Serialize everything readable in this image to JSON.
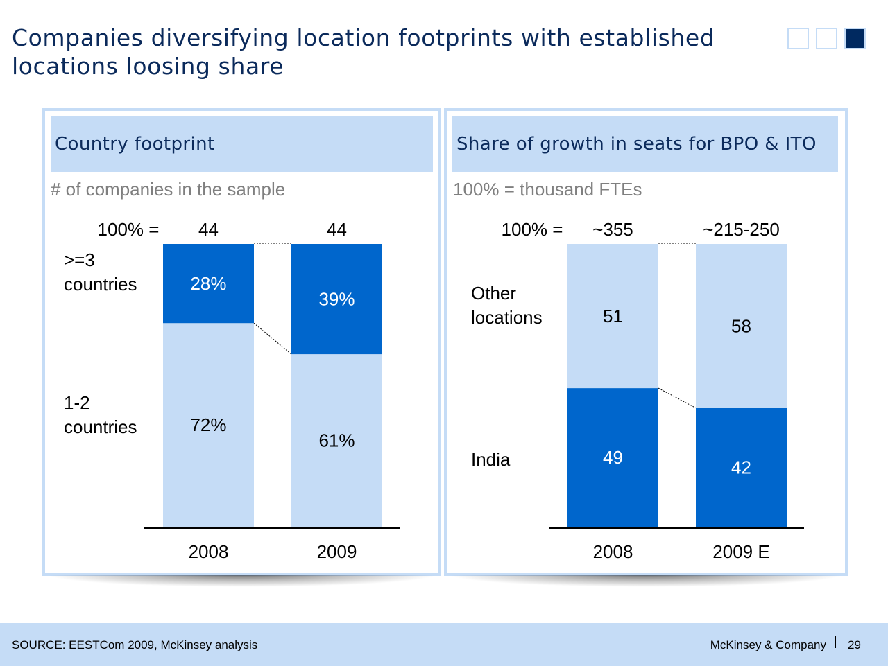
{
  "slide": {
    "title_line1": "Companies diversifying location footprints with established",
    "title_line2": "locations loosing share"
  },
  "footer": {
    "source": "SOURCE: EESTCom 2009, McKinsey analysis",
    "brand": "McKinsey & Company",
    "page": "29"
  },
  "colors": {
    "dark_blue": "#0066cc",
    "light_blue": "#c5dcf6",
    "title_navy": "#0b2a5b",
    "subtitle_gray": "#7f7f7f"
  },
  "chart_data": [
    {
      "type": "bar",
      "stacked": true,
      "normalized": true,
      "title": "Country footprint",
      "subtitle": "# of companies in the sample",
      "total_prefix": "100% =",
      "categories": [
        "2008",
        "2009"
      ],
      "totals": [
        "44",
        "44"
      ],
      "series": [
        {
          "name": "1-2\ncountries",
          "values": [
            72,
            61
          ],
          "labels": [
            "72%",
            "61%"
          ],
          "color": "#c5dcf6"
        },
        {
          "name": ">=3\ncountries",
          "values": [
            28,
            39
          ],
          "labels": [
            "28%",
            "39%"
          ],
          "color": "#0066cc"
        }
      ],
      "ylim": [
        0,
        100
      ]
    },
    {
      "type": "bar",
      "stacked": true,
      "normalized": true,
      "title": "Share of growth in seats for BPO & ITO",
      "subtitle": "100% = thousand FTEs",
      "total_prefix": "100% =",
      "categories": [
        "2008",
        "2009 E"
      ],
      "totals": [
        "~355",
        "~215-250"
      ],
      "series": [
        {
          "name": "India",
          "values": [
            49,
            42
          ],
          "labels": [
            "49",
            "42"
          ],
          "color": "#0066cc"
        },
        {
          "name": "Other\nlocations",
          "values": [
            51,
            58
          ],
          "labels": [
            "51",
            "58"
          ],
          "color": "#c5dcf6"
        }
      ],
      "ylim": [
        0,
        100
      ]
    }
  ]
}
